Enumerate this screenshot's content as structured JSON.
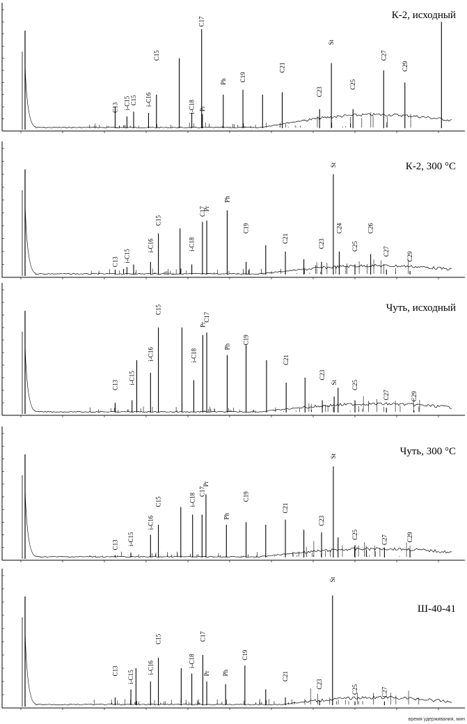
{
  "chart_data": [
    {
      "type": "line",
      "title": "К-2, исходный",
      "peaks": [
        {
          "label": "C13",
          "x": 0.215,
          "h": 0.2,
          "lh": 0.15
        },
        {
          "label": "i-C15",
          "x": 0.245,
          "h": 0.12,
          "lh": 0.17
        },
        {
          "label": "C15",
          "x": 0.262,
          "h": 0.16
        },
        {
          "label": "i-C16",
          "x": 0.3,
          "h": 0.15,
          "lh": 0.2
        },
        {
          "label": "C15",
          "x": 0.32,
          "h": 0.3,
          "lh": 0.58
        },
        {
          "label": "",
          "x": 0.378,
          "h": 0.6
        },
        {
          "label": "i-C18",
          "x": 0.41,
          "h": 0.15,
          "lh": 0.14
        },
        {
          "label": "Pr",
          "x": 0.437,
          "h": 0.14,
          "lh": 0.16
        },
        {
          "label": "C17",
          "x": 0.435,
          "h": 0.84,
          "lh": 0.86
        },
        {
          "label": "Ph",
          "x": 0.49,
          "h": 0.3,
          "lh": 0.38
        },
        {
          "label": "C19",
          "x": 0.54,
          "h": 0.34,
          "lh": 0.4
        },
        {
          "label": "",
          "x": 0.59,
          "h": 0.3
        },
        {
          "label": "C21",
          "x": 0.64,
          "h": 0.32,
          "lh": 0.48
        },
        {
          "label": "C23",
          "x": 0.735,
          "h": 0.18,
          "lh": 0.28
        },
        {
          "label": "St",
          "x": 0.765,
          "h": 0.56,
          "lh": 0.71
        },
        {
          "label": "C25",
          "x": 0.82,
          "h": 0.18,
          "lh": 0.34
        },
        {
          "label": "C27",
          "x": 0.898,
          "h": 0.5,
          "lh": 0.58
        },
        {
          "label": "C29",
          "x": 0.952,
          "h": 0.4,
          "lh": 0.49
        },
        {
          "label": "",
          "x": 1.045,
          "h": 0.9
        }
      ]
    },
    {
      "type": "line",
      "title": "К-2, 300 °С",
      "peaks": [
        {
          "label": "C13",
          "x": 0.215,
          "h": 0.06,
          "lh": 0.08
        },
        {
          "label": "i-C15",
          "x": 0.245,
          "h": 0.08,
          "lh": 0.11
        },
        {
          "label": "",
          "x": 0.262,
          "h": 0.1
        },
        {
          "label": "i-C16",
          "x": 0.305,
          "h": 0.12,
          "lh": 0.19
        },
        {
          "label": "C15",
          "x": 0.325,
          "h": 0.34,
          "lh": 0.4
        },
        {
          "label": "",
          "x": 0.38,
          "h": 0.38
        },
        {
          "label": "i-C18",
          "x": 0.41,
          "h": 0.1,
          "lh": 0.2
        },
        {
          "label": "C17",
          "x": 0.437,
          "h": 0.43,
          "lh": 0.47
        },
        {
          "label": "Pr",
          "x": 0.448,
          "h": 0.44,
          "lh": 0.51
        },
        {
          "label": "Ph",
          "x": 0.5,
          "h": 0.52,
          "lh": 0.58
        },
        {
          "label": "C19",
          "x": 0.548,
          "h": 0.12,
          "lh": 0.34
        },
        {
          "label": "",
          "x": 0.598,
          "h": 0.25
        },
        {
          "label": "C21",
          "x": 0.648,
          "h": 0.2,
          "lh": 0.26
        },
        {
          "label": "",
          "x": 0.695,
          "h": 0.14
        },
        {
          "label": "C23",
          "x": 0.74,
          "h": 0.12,
          "lh": 0.22
        },
        {
          "label": "St",
          "x": 0.77,
          "h": 0.8,
          "lh": 0.85
        },
        {
          "label": "C24",
          "x": 0.785,
          "h": 0.2,
          "lh": 0.34
        },
        {
          "label": "C25",
          "x": 0.825,
          "h": 0.1,
          "lh": 0.2
        },
        {
          "label": "C26",
          "x": 0.865,
          "h": 0.18,
          "lh": 0.34
        },
        {
          "label": "C27",
          "x": 0.905,
          "h": 0.06,
          "lh": 0.16
        },
        {
          "label": "C29",
          "x": 0.965,
          "h": 0.05,
          "lh": 0.12
        }
      ]
    },
    {
      "type": "line",
      "title": "Чуть, исходный",
      "peaks": [
        {
          "label": "C13",
          "x": 0.215,
          "h": 0.1,
          "lh": 0.2
        },
        {
          "label": "i-C15",
          "x": 0.258,
          "h": 0.12,
          "lh": 0.24
        },
        {
          "label": "",
          "x": 0.27,
          "h": 0.44
        },
        {
          "label": "i-C16",
          "x": 0.305,
          "h": 0.34,
          "lh": 0.43
        },
        {
          "label": "C15",
          "x": 0.325,
          "h": 0.7,
          "lh": 0.8
        },
        {
          "label": "",
          "x": 0.385,
          "h": 0.7
        },
        {
          "label": "i-C18",
          "x": 0.415,
          "h": 0.28,
          "lh": 0.42
        },
        {
          "label": "C17",
          "x": 0.448,
          "h": 0.66,
          "lh": 0.74
        },
        {
          "label": "Pr",
          "x": 0.438,
          "h": 0.64,
          "lh": 0.7
        },
        {
          "label": "Ph",
          "x": 0.5,
          "h": 0.48,
          "lh": 0.52
        },
        {
          "label": "C19",
          "x": 0.548,
          "h": 0.56,
          "lh": 0.56
        },
        {
          "label": "",
          "x": 0.6,
          "h": 0.44
        },
        {
          "label": "C21",
          "x": 0.65,
          "h": 0.26,
          "lh": 0.4
        },
        {
          "label": "",
          "x": 0.698,
          "h": 0.3
        },
        {
          "label": "C23",
          "x": 0.742,
          "h": 0.12,
          "lh": 0.28
        },
        {
          "label": "St",
          "x": 0.772,
          "h": 0.15,
          "lh": 0.24
        },
        {
          "label": "",
          "x": 0.782,
          "h": 0.22
        },
        {
          "label": "C25",
          "x": 0.825,
          "h": 0.12,
          "lh": 0.2
        },
        {
          "label": "C27",
          "x": 0.905,
          "h": 0.06,
          "lh": 0.12
        },
        {
          "label": "C29",
          "x": 0.975,
          "h": 0.04,
          "lh": 0.11
        }
      ]
    },
    {
      "type": "line",
      "title": "Чуть, 300 °С",
      "peaks": [
        {
          "label": "C13",
          "x": 0.215,
          "h": 0.04,
          "lh": 0.08
        },
        {
          "label": "i-C15",
          "x": 0.255,
          "h": 0.06,
          "lh": 0.11
        },
        {
          "label": "i-C16",
          "x": 0.305,
          "h": 0.2,
          "lh": 0.24
        },
        {
          "label": "C15",
          "x": 0.325,
          "h": 0.28,
          "lh": 0.42
        },
        {
          "label": "",
          "x": 0.382,
          "h": 0.42
        },
        {
          "label": "i-C18",
          "x": 0.412,
          "h": 0.36,
          "lh": 0.42
        },
        {
          "label": "C17",
          "x": 0.436,
          "h": 0.36,
          "lh": 0.5
        },
        {
          "label": "Pr",
          "x": 0.446,
          "h": 0.52,
          "lh": 0.58
        },
        {
          "label": "Ph",
          "x": 0.498,
          "h": 0.28,
          "lh": 0.32
        },
        {
          "label": "C19",
          "x": 0.548,
          "h": 0.3,
          "lh": 0.46
        },
        {
          "label": "",
          "x": 0.598,
          "h": 0.28
        },
        {
          "label": "C21",
          "x": 0.648,
          "h": 0.32,
          "lh": 0.37
        },
        {
          "label": "",
          "x": 0.695,
          "h": 0.24
        },
        {
          "label": "C23",
          "x": 0.74,
          "h": 0.22,
          "lh": 0.27
        },
        {
          "label": "St",
          "x": 0.77,
          "h": 0.74,
          "lh": 0.8
        },
        {
          "label": "",
          "x": 0.782,
          "h": 0.18
        },
        {
          "label": "C25",
          "x": 0.825,
          "h": 0.12,
          "lh": 0.16
        },
        {
          "label": "C27",
          "x": 0.9,
          "h": 0.1,
          "lh": 0.12
        },
        {
          "label": "C29",
          "x": 0.965,
          "h": 0.08,
          "lh": 0.14
        }
      ]
    },
    {
      "type": "line",
      "title": "Ш-40-41",
      "xlabel": "время удерживания, мин",
      "peaks": [
        {
          "label": "C13",
          "x": 0.215,
          "h": 0.08,
          "lh": 0.24
        },
        {
          "label": "i-C15",
          "x": 0.255,
          "h": 0.14,
          "lh": 0.18
        },
        {
          "label": "",
          "x": 0.268,
          "h": 0.3
        },
        {
          "label": "i-C16",
          "x": 0.305,
          "h": 0.2,
          "lh": 0.25
        },
        {
          "label": "C15",
          "x": 0.325,
          "h": 0.38,
          "lh": 0.48
        },
        {
          "label": "",
          "x": 0.383,
          "h": 0.3
        },
        {
          "label": "i-C18",
          "x": 0.41,
          "h": 0.26,
          "lh": 0.3
        },
        {
          "label": "C17",
          "x": 0.438,
          "h": 0.4,
          "lh": 0.5
        },
        {
          "label": "Pr",
          "x": 0.448,
          "h": 0.2,
          "lh": 0.24
        },
        {
          "label": "Ph",
          "x": 0.496,
          "h": 0.18,
          "lh": 0.24
        },
        {
          "label": "C19",
          "x": 0.545,
          "h": 0.32,
          "lh": 0.36
        },
        {
          "label": "",
          "x": 0.598,
          "h": 0.14
        },
        {
          "label": "C21",
          "x": 0.648,
          "h": 0.08,
          "lh": 0.2
        },
        {
          "label": "C23",
          "x": 0.735,
          "h": 0.06,
          "lh": 0.14
        },
        {
          "label": "St",
          "x": 0.768,
          "h": 0.85,
          "lh": 0.95
        },
        {
          "label": "C25",
          "x": 0.825,
          "h": 0.05,
          "lh": 0.1
        },
        {
          "label": "C27",
          "x": 0.9,
          "h": 0.05,
          "lh": 0.08
        }
      ]
    }
  ]
}
